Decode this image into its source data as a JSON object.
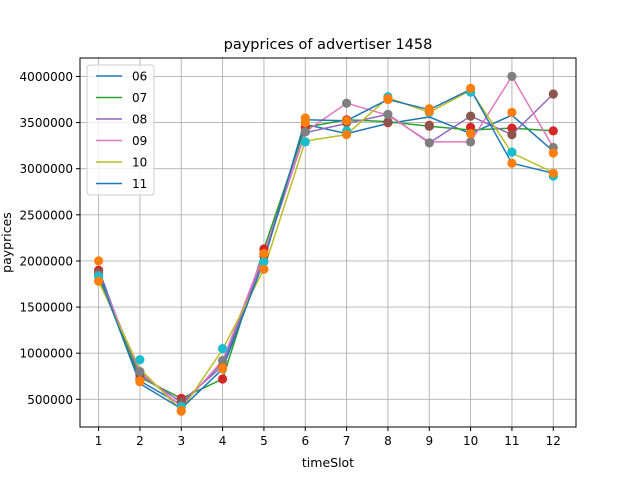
{
  "chart_data": {
    "type": "line",
    "title": "payprices of advertiser 1458",
    "xlabel": "timeSlot",
    "ylabel": "payprices",
    "x": [
      1,
      2,
      3,
      4,
      5,
      6,
      7,
      8,
      9,
      10,
      11,
      12
    ],
    "xlim": [
      0.55,
      12.55
    ],
    "ylim": [
      200000,
      4200000
    ],
    "yticks": [
      "500000",
      "1000000",
      "1500000",
      "2000000",
      "2500000",
      "3000000",
      "3500000",
      "4000000"
    ],
    "grid": true,
    "legend_position": "upper-left",
    "series": [
      {
        "name": "06",
        "color": "#1f77b4",
        "values": [
          1910000,
          700000,
          440000,
          900000,
          2060000,
          3480000,
          3380000,
          3490000,
          3560000,
          3380000,
          3580000,
          3190000
        ]
      },
      {
        "name": "07",
        "color": "#2ca02c",
        "values": [
          1820000,
          740000,
          510000,
          720000,
          2130000,
          3450000,
          3530000,
          3510000,
          3460000,
          3420000,
          3440000,
          3410000
        ]
      },
      {
        "name": "08",
        "color": "#9467bd",
        "values": [
          1870000,
          770000,
          470000,
          860000,
          2050000,
          3390000,
          3490000,
          3590000,
          3280000,
          3570000,
          3370000,
          3810000
        ]
      },
      {
        "name": "09",
        "color": "#e377c2",
        "values": [
          1840000,
          800000,
          420000,
          920000,
          2080000,
          3400000,
          3710000,
          3580000,
          3290000,
          3290000,
          4000000,
          3230000
        ]
      },
      {
        "name": "10",
        "color": "#bcbd22",
        "values": [
          1780000,
          830000,
          380000,
          1040000,
          1910000,
          3300000,
          3370000,
          3770000,
          3610000,
          3850000,
          3170000,
          2960000
        ]
      },
      {
        "name": "11",
        "color": "#1f77b4",
        "values": [
          1860000,
          670000,
          400000,
          830000,
          2000000,
          3530000,
          3520000,
          3750000,
          3640000,
          3860000,
          3060000,
          2950000
        ]
      }
    ],
    "marker_series": [
      {
        "color": "#d62728",
        "values": [
          1900000,
          720000,
          510000,
          720000,
          2130000,
          3450000,
          3530000,
          3500000,
          3470000,
          3450000,
          3440000,
          3410000
        ]
      },
      {
        "color": "#8c564b",
        "values": [
          1870000,
          760000,
          480000,
          860000,
          2050000,
          3400000,
          3500000,
          3510000,
          3460000,
          3570000,
          3370000,
          3810000
        ]
      },
      {
        "color": "#7f7f7f",
        "values": [
          1850000,
          800000,
          430000,
          920000,
          2080000,
          3400000,
          3710000,
          3590000,
          3280000,
          3290000,
          4000000,
          3230000
        ]
      },
      {
        "color": "#17becf",
        "values": [
          1830000,
          930000,
          420000,
          1050000,
          1990000,
          3290000,
          3410000,
          3780000,
          3610000,
          3830000,
          3180000,
          2920000
        ]
      },
      {
        "color": "#ff7f0e",
        "values": [
          2000000,
          690000,
          370000,
          830000,
          1910000,
          3550000,
          3520000,
          3750000,
          3650000,
          3870000,
          3610000,
          3170000
        ]
      },
      {
        "color": "#ff7f0e",
        "values": [
          1780000,
          700000,
          380000,
          840000,
          2080000,
          3500000,
          3370000,
          3760000,
          3620000,
          3380000,
          3060000,
          2950000
        ]
      }
    ]
  }
}
